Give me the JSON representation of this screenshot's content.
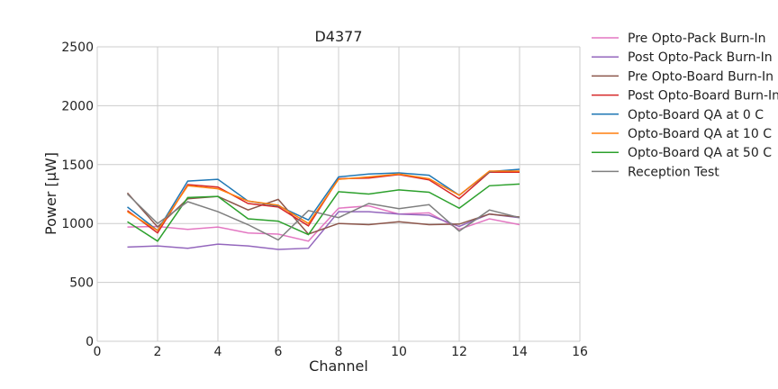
{
  "chart_data": {
    "type": "line",
    "title": "D4377",
    "xlabel": "Channel",
    "ylabel": "Power [μW]",
    "xlim": [
      0,
      16
    ],
    "ylim": [
      0,
      2500
    ],
    "xticks": [
      0,
      2,
      4,
      6,
      8,
      10,
      12,
      14,
      16
    ],
    "yticks": [
      0,
      500,
      1000,
      1500,
      2000,
      2500
    ],
    "grid": true,
    "legend_position": "outside-right",
    "x": [
      1,
      2,
      3,
      4,
      5,
      6,
      7,
      8,
      9,
      10,
      11,
      12,
      13,
      14
    ],
    "series": [
      {
        "name": "Pre Opto-Pack Burn-In",
        "color": "#e377c2",
        "values": [
          970,
          975,
          950,
          970,
          920,
          910,
          850,
          1130,
          1150,
          1080,
          1090,
          950,
          1040,
          990
        ]
      },
      {
        "name": "Post Opto-Pack Burn-In",
        "color": "#9467bd",
        "values": [
          800,
          810,
          790,
          825,
          810,
          780,
          790,
          1100,
          1100,
          1080,
          1070,
          975,
          1080,
          1050
        ]
      },
      {
        "name": "Pre Opto-Board Burn-In",
        "color": "#8c564b",
        "values": [
          1260,
          970,
          1210,
          1230,
          1115,
          1205,
          910,
          1000,
          990,
          1015,
          990,
          995,
          1080,
          1055
        ]
      },
      {
        "name": "Post Opto-Board Burn-In",
        "color": "#d62728",
        "values": [
          1110,
          920,
          1330,
          1310,
          1170,
          1140,
          980,
          1380,
          1385,
          1415,
          1370,
          1210,
          1435,
          1435
        ]
      },
      {
        "name": "Opto-Board QA at 0 C",
        "color": "#1f77b4",
        "values": [
          1140,
          940,
          1360,
          1375,
          1190,
          1150,
          1030,
          1395,
          1420,
          1430,
          1410,
          1240,
          1440,
          1460
        ]
      },
      {
        "name": "Opto-Board QA at 10 C",
        "color": "#ff7f0e",
        "values": [
          1100,
          940,
          1320,
          1295,
          1190,
          1155,
          1000,
          1375,
          1395,
          1420,
          1380,
          1240,
          1445,
          1445
        ]
      },
      {
        "name": "Opto-Board QA at 50 C",
        "color": "#2ca02c",
        "values": [
          1015,
          850,
          1220,
          1230,
          1040,
          1020,
          905,
          1270,
          1250,
          1285,
          1265,
          1130,
          1320,
          1335
        ]
      },
      {
        "name": "Reception Test",
        "color": "#7f7f7f",
        "values": [
          1250,
          1000,
          1185,
          1100,
          990,
          860,
          1110,
          1050,
          1170,
          1125,
          1160,
          935,
          1115,
          1050
        ]
      }
    ]
  }
}
